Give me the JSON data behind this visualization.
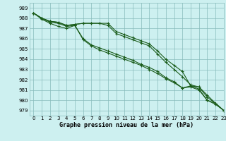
{
  "title": "Graphe pression niveau de la mer (hPa)",
  "background_color": "#cdf0f0",
  "grid_color": "#88bbbb",
  "line_color": "#1a5c1a",
  "xlim": [
    -0.5,
    23
  ],
  "ylim": [
    978.5,
    989.5
  ],
  "yticks": [
    979,
    980,
    981,
    982,
    983,
    984,
    985,
    986,
    987,
    988,
    989
  ],
  "xticks": [
    0,
    1,
    2,
    3,
    4,
    5,
    6,
    7,
    8,
    9,
    10,
    11,
    12,
    13,
    14,
    15,
    16,
    17,
    18,
    19,
    20,
    21,
    22,
    23
  ],
  "line1": [
    988.5,
    988.0,
    987.7,
    987.6,
    987.3,
    987.4,
    987.5,
    987.5,
    987.5,
    987.5,
    986.7,
    986.4,
    986.1,
    985.8,
    985.5,
    984.8,
    984.0,
    983.4,
    982.8,
    981.4,
    981.3,
    980.5,
    979.7,
    979.0
  ],
  "line2": [
    988.5,
    988.0,
    987.7,
    987.6,
    987.3,
    987.4,
    987.5,
    987.5,
    987.5,
    987.3,
    986.5,
    986.2,
    985.9,
    985.6,
    985.3,
    984.5,
    983.7,
    983.0,
    982.3,
    981.5,
    981.3,
    980.3,
    979.7,
    979.0
  ],
  "line3": [
    988.5,
    988.0,
    987.6,
    987.5,
    987.2,
    987.3,
    986.0,
    985.4,
    985.1,
    984.8,
    984.5,
    984.2,
    983.9,
    983.5,
    983.2,
    982.8,
    982.2,
    981.8,
    981.2,
    981.4,
    981.1,
    980.0,
    979.7,
    979.0
  ],
  "line4": [
    988.5,
    987.9,
    987.5,
    987.2,
    987.0,
    987.3,
    985.9,
    985.3,
    984.9,
    984.6,
    984.3,
    984.0,
    983.7,
    983.4,
    983.0,
    982.6,
    982.1,
    981.7,
    981.2,
    981.3,
    981.0,
    980.0,
    979.6,
    979.0
  ]
}
